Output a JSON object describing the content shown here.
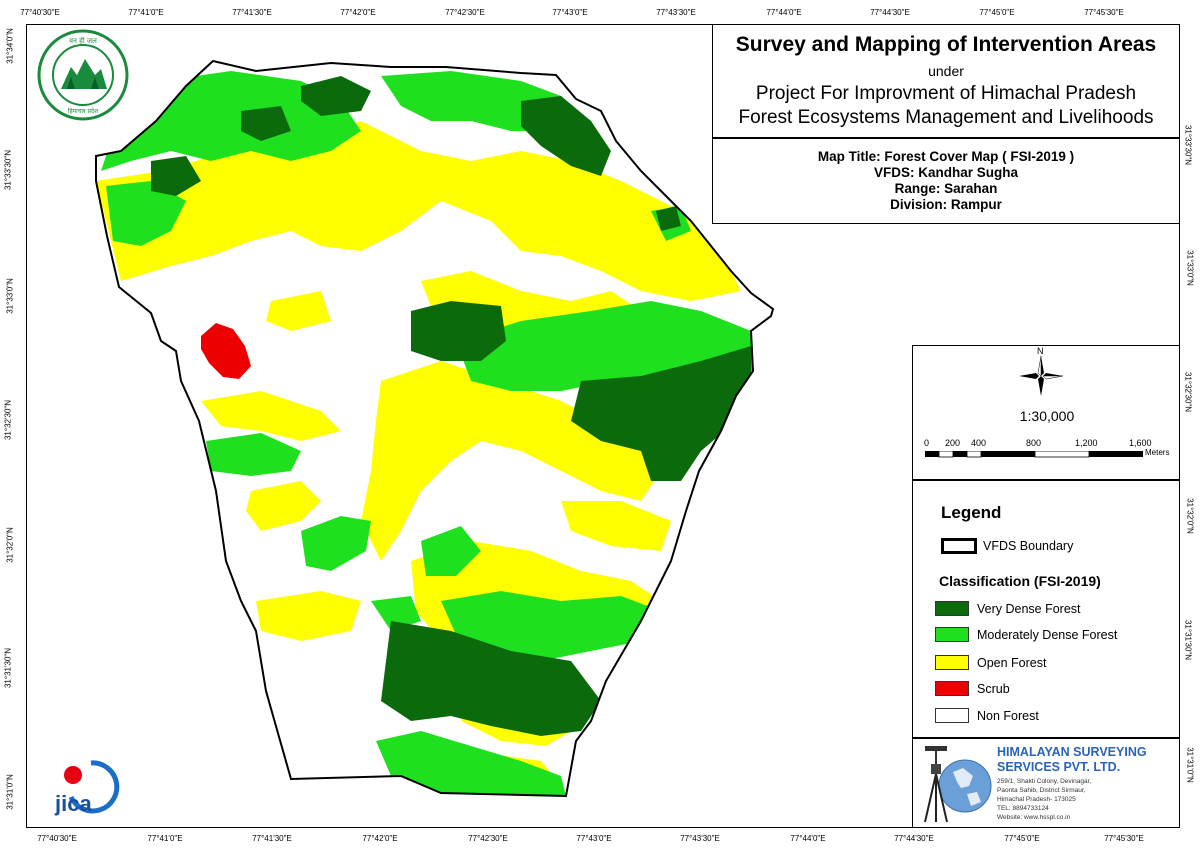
{
  "title": {
    "main": "Survey and Mapping of Intervention Areas",
    "under": "under",
    "project_line1": "Project For Improvment of Himachal Pradesh",
    "project_line2": "Forest Ecosystems Management and Livelihoods"
  },
  "info": {
    "map_title": "Map Title: Forest Cover Map ( FSI-2019 )",
    "vfds": "VFDS: Kandhar Sugha",
    "range": "Range: Sarahan",
    "division": "Division: Rampur"
  },
  "scale": {
    "north": "N",
    "ratio": "1:30,000",
    "bar_labels": [
      "0",
      "200",
      "400",
      "800",
      "1,200",
      "1,600"
    ],
    "unit": "Meters"
  },
  "legend": {
    "title": "Legend",
    "boundary_label": "VFDS Boundary",
    "classification_title": "Classification (FSI-2019)",
    "classes": [
      {
        "label": "Very Dense Forest",
        "color": "#0b6a0b"
      },
      {
        "label": "Moderately Dense Forest",
        "color": "#1fe01f"
      },
      {
        "label": "Open Forest",
        "color": "#ffff00"
      },
      {
        "label": "Scrub",
        "color": "#ee0000"
      },
      {
        "label": "Non Forest",
        "color": "#ffffff"
      }
    ]
  },
  "company": {
    "name_line1": "HIMALAYAN SURVEYING",
    "name_line2": "SERVICES PVT. LTD.",
    "address_lines": [
      "259/1, Shakti Colony, Devinagar,",
      "Paonta Sahib, District Sirmaur,",
      "Himachal Pradesh- 173025",
      "TEL: 8894733124",
      "Website: www.hsspl.co.in"
    ]
  },
  "logos": {
    "forest_dept": "Himachal Pradesh forest department seal",
    "jica": "JICA"
  },
  "grid_ticks": {
    "top": [
      "77°40'30\"E",
      "77°41'0\"E",
      "77°41'30\"E",
      "77°42'0\"E",
      "77°42'30\"E",
      "77°43'0\"E",
      "77°43'30\"E",
      "77°44'0\"E",
      "77°44'30\"E",
      "77°45'0\"E",
      "77°45'30\"E"
    ],
    "bottom": [
      "77°40'30\"E",
      "77°41'0\"E",
      "77°41'30\"E",
      "77°42'0\"E",
      "77°42'30\"E",
      "77°43'0\"E",
      "77°43'30\"E",
      "77°44'0\"E",
      "77°44'30\"E",
      "77°45'0\"E",
      "77°45'30\"E"
    ],
    "left": [
      "31°34'0\"N",
      "31°33'30\"N",
      "31°33'0\"N",
      "31°32'30\"N",
      "31°32'0\"N",
      "31°31'30\"N",
      "31°31'0\"N"
    ],
    "right": [
      "31°33'30\"N",
      "31°33'0\"N",
      "31°32'30\"N",
      "31°32'0\"N",
      "31°31'30\"N",
      "31°31'0\"N"
    ]
  }
}
